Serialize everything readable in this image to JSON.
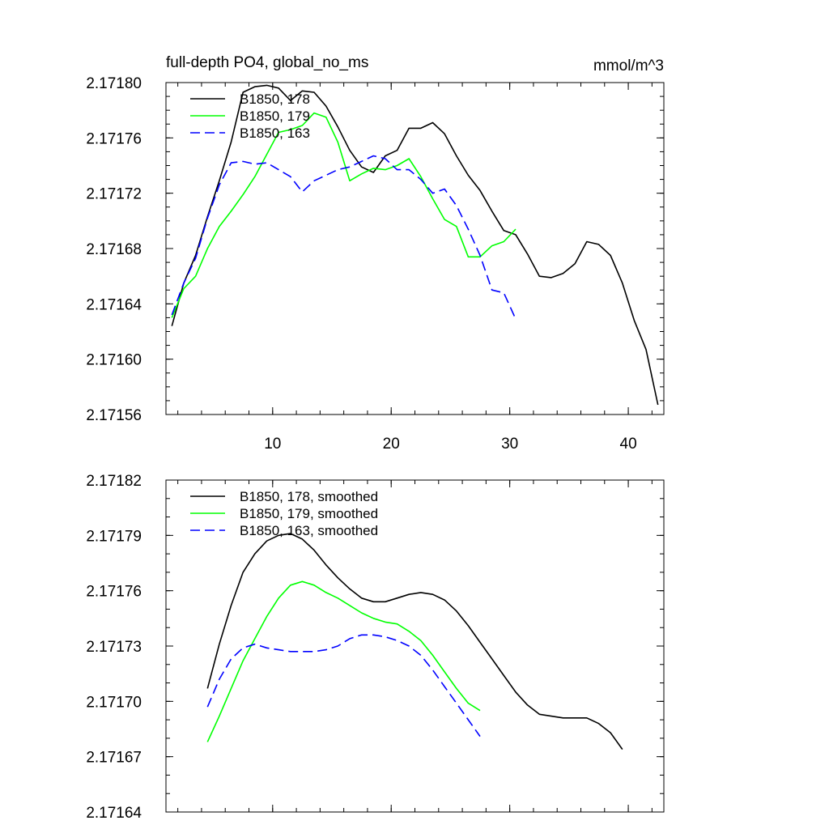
{
  "chart_data": [
    {
      "type": "line",
      "title": "full-depth PO4, global_no_ms",
      "units": "mmol/m^3",
      "xlabel": "",
      "ylabel": "",
      "xlim": [
        1,
        43
      ],
      "ylim": [
        2.17156,
        2.1718
      ],
      "x_ticks": [
        10,
        20,
        30,
        40
      ],
      "x_tick_labels": [
        "10",
        "20",
        "30",
        "40"
      ],
      "x_minor_step": 2,
      "y_ticks": [
        2.17156,
        2.1716,
        2.17164,
        2.17168,
        2.17172,
        2.17176,
        2.1718
      ],
      "y_tick_labels": [
        "2.17156",
        "2.17160",
        "2.17164",
        "2.17168",
        "2.17172",
        "2.17176",
        "2.17180"
      ],
      "y_minor_step": 1e-05,
      "legend_position": "top-left",
      "series": [
        {
          "name": "B1850, 178",
          "color": "#000000",
          "dash": "solid",
          "x": [
            1.5,
            2.5,
            3.5,
            4.5,
            5.5,
            6.5,
            7.5,
            8.5,
            9.5,
            10.5,
            11.5,
            12.5,
            13.5,
            14.5,
            15.5,
            16.5,
            17.5,
            18.5,
            19.5,
            20.5,
            21.5,
            22.5,
            23.5,
            24.5,
            25.5,
            26.5,
            27.5,
            28.5,
            29.5,
            30.5,
            31.5,
            32.5,
            33.5,
            34.5,
            35.5,
            36.5,
            37.5,
            38.5,
            39.5,
            40.5,
            41.5,
            42.5
          ],
          "y": [
            2.171624,
            2.171655,
            2.171675,
            2.171703,
            2.171729,
            2.171757,
            2.171793,
            2.171797,
            2.171798,
            2.171796,
            2.171787,
            2.171794,
            2.171793,
            2.171783,
            2.171768,
            2.171751,
            2.171739,
            2.171735,
            2.171747,
            2.171751,
            2.171767,
            2.171767,
            2.171771,
            2.171763,
            2.171747,
            2.171733,
            2.171722,
            2.171707,
            2.171693,
            2.17169,
            2.171676,
            2.17166,
            2.171659,
            2.171662,
            2.171669,
            2.171685,
            2.171683,
            2.171675,
            2.171655,
            2.171628,
            2.171607,
            2.171567
          ]
        },
        {
          "name": "B1850, 179",
          "color": "#00ff00",
          "dash": "solid",
          "x": [
            1.5,
            2.5,
            3.5,
            4.5,
            5.5,
            6.5,
            7.5,
            8.5,
            9.5,
            10.5,
            11.5,
            12.5,
            13.5,
            14.5,
            15.5,
            16.5,
            17.5,
            18.5,
            19.5,
            20.5,
            21.5,
            22.5,
            23.5,
            24.5,
            25.5,
            26.5,
            27.5,
            28.5,
            29.5,
            30.5
          ],
          "y": [
            2.17163,
            2.171651,
            2.17166,
            2.17168,
            2.171696,
            2.171707,
            2.171719,
            2.171732,
            2.171748,
            2.171764,
            2.171766,
            2.171769,
            2.171778,
            2.171775,
            2.171757,
            2.171729,
            2.171734,
            2.171738,
            2.171737,
            2.17174,
            2.171745,
            2.171732,
            2.171716,
            2.171701,
            2.171696,
            2.171674,
            2.171674,
            2.171682,
            2.171685,
            2.171694
          ]
        },
        {
          "name": "B1850, 163",
          "color": "#0000ff",
          "dash": "dashed",
          "x": [
            1.5,
            2.5,
            3.5,
            4.5,
            5.5,
            6.5,
            7.5,
            8.5,
            9.5,
            10.5,
            11.5,
            12.5,
            13.5,
            14.5,
            15.5,
            16.5,
            17.5,
            18.5,
            19.5,
            20.5,
            21.5,
            22.5,
            23.5,
            24.5,
            25.5,
            26.5,
            27.5,
            28.5,
            29.5,
            30.5
          ],
          "y": [
            2.171632,
            2.171655,
            2.171673,
            2.171702,
            2.171726,
            2.171742,
            2.171743,
            2.171741,
            2.171742,
            2.171737,
            2.171732,
            2.171721,
            2.171729,
            2.171733,
            2.171737,
            2.171739,
            2.171743,
            2.171747,
            2.171745,
            2.171737,
            2.171737,
            2.17173,
            2.17172,
            2.171723,
            2.171711,
            2.171694,
            2.171675,
            2.17165,
            2.171648,
            2.171629
          ]
        }
      ]
    },
    {
      "type": "line",
      "title": "",
      "units": "",
      "xlabel": "",
      "ylabel": "",
      "xlim": [
        1,
        43
      ],
      "ylim": [
        2.17164,
        2.17182
      ],
      "x_ticks": [
        10,
        20,
        30,
        40
      ],
      "x_tick_labels": [],
      "x_minor_step": 2,
      "y_ticks": [
        2.17164,
        2.17167,
        2.1717,
        2.17173,
        2.17176,
        2.17179,
        2.17182
      ],
      "y_tick_labels": [
        "2.17164",
        "2.17167",
        "2.17170",
        "2.17173",
        "2.17176",
        "2.17179",
        "2.17182"
      ],
      "y_minor_step": 1e-05,
      "legend_position": "top-left",
      "series": [
        {
          "name": "B1850, 178, smoothed",
          "color": "#000000",
          "dash": "solid",
          "x": [
            4.5,
            5.5,
            6.5,
            7.5,
            8.5,
            9.5,
            10.5,
            11.5,
            12.5,
            13.5,
            14.5,
            15.5,
            16.5,
            17.5,
            18.5,
            19.5,
            20.5,
            21.5,
            22.5,
            23.5,
            24.5,
            25.5,
            26.5,
            27.5,
            28.5,
            29.5,
            30.5,
            31.5,
            32.5,
            33.5,
            34.5,
            35.5,
            36.5,
            37.5,
            38.5,
            39.5
          ],
          "y": [
            2.171707,
            2.171731,
            2.171752,
            2.17177,
            2.17178,
            2.171787,
            2.17179,
            2.171791,
            2.171788,
            2.171782,
            2.171774,
            2.171767,
            2.171761,
            2.171756,
            2.171754,
            2.171754,
            2.171756,
            2.171758,
            2.171759,
            2.171758,
            2.171755,
            2.171749,
            2.171741,
            2.171732,
            2.171723,
            2.171714,
            2.171705,
            2.171698,
            2.171693,
            2.171692,
            2.171691,
            2.171691,
            2.171691,
            2.171688,
            2.171683,
            2.171674
          ]
        },
        {
          "name": "B1850, 179, smoothed",
          "color": "#00ff00",
          "dash": "solid",
          "x": [
            4.5,
            5.5,
            6.5,
            7.5,
            8.5,
            9.5,
            10.5,
            11.5,
            12.5,
            13.5,
            14.5,
            15.5,
            16.5,
            17.5,
            18.5,
            19.5,
            20.5,
            21.5,
            22.5,
            23.5,
            24.5,
            25.5,
            26.5,
            27.5
          ],
          "y": [
            2.171678,
            2.171692,
            2.171707,
            2.171722,
            2.171734,
            2.171746,
            2.171756,
            2.171763,
            2.171765,
            2.171763,
            2.171759,
            2.171756,
            2.171752,
            2.171748,
            2.171745,
            2.171743,
            2.171742,
            2.171738,
            2.171733,
            2.171725,
            2.171716,
            2.171707,
            2.171699,
            2.171695
          ]
        },
        {
          "name": "B1850, 163, smoothed",
          "color": "#0000ff",
          "dash": "dashed",
          "x": [
            4.5,
            5.5,
            6.5,
            7.5,
            8.5,
            9.5,
            10.5,
            11.5,
            12.5,
            13.5,
            14.5,
            15.5,
            16.5,
            17.5,
            18.5,
            19.5,
            20.5,
            21.5,
            22.5,
            23.5,
            24.5,
            25.5,
            26.5,
            27.5
          ],
          "y": [
            2.171697,
            2.171712,
            2.171723,
            2.171729,
            2.171731,
            2.171729,
            2.171728,
            2.171727,
            2.171727,
            2.171727,
            2.171728,
            2.17173,
            2.171734,
            2.171736,
            2.171736,
            2.171735,
            2.171733,
            2.17173,
            2.171725,
            2.171717,
            2.171708,
            2.171699,
            2.17169,
            2.171681
          ]
        }
      ]
    }
  ]
}
